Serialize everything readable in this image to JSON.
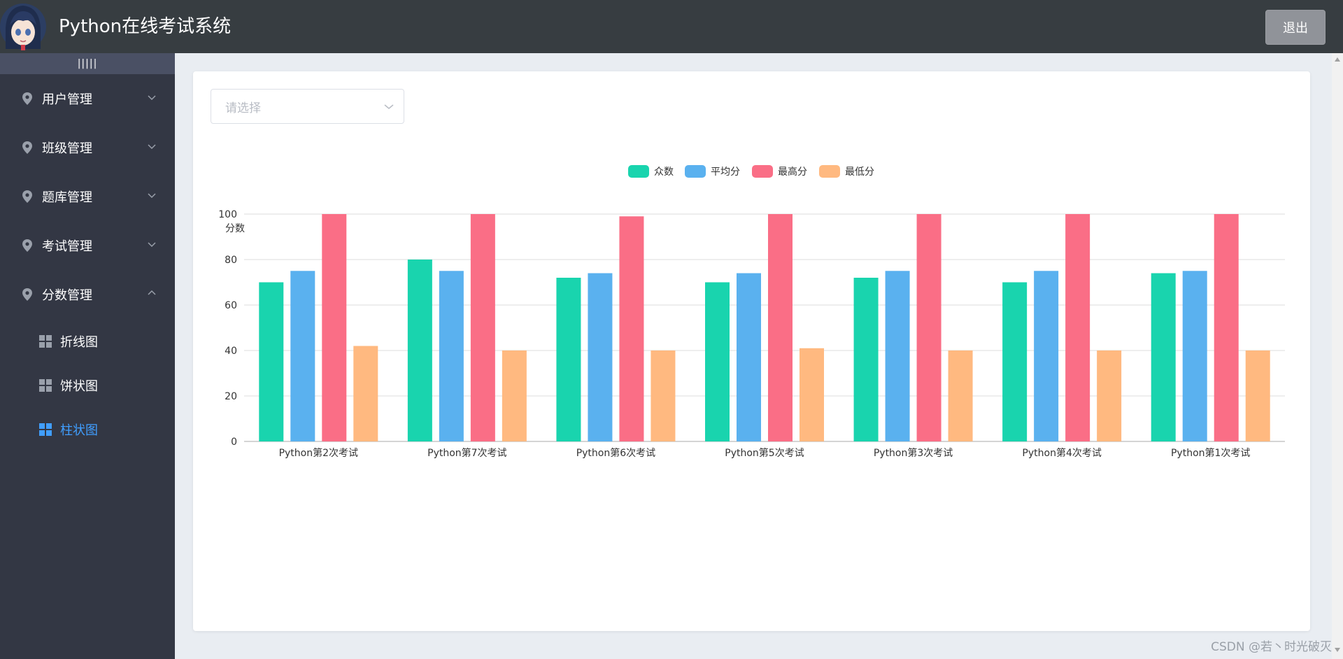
{
  "header": {
    "title": "Python在线考试系统",
    "logout_label": "退出"
  },
  "sidebar": {
    "collapse_label": "|||||",
    "menus": [
      {
        "label": "用户管理",
        "expanded": false
      },
      {
        "label": "班级管理",
        "expanded": false
      },
      {
        "label": "题库管理",
        "expanded": false
      },
      {
        "label": "考试管理",
        "expanded": false
      },
      {
        "label": "分数管理",
        "expanded": true
      }
    ],
    "sub_items": [
      {
        "label": "折线图",
        "active": false
      },
      {
        "label": "饼状图",
        "active": false
      },
      {
        "label": "柱状图",
        "active": true
      }
    ]
  },
  "main": {
    "select_placeholder": "请选择"
  },
  "chart_data": {
    "type": "bar",
    "ylabel": "分数",
    "ylim": [
      0,
      100
    ],
    "yticks": [
      0,
      20,
      40,
      60,
      80,
      100
    ],
    "grid": true,
    "legend_position": "top-center",
    "categories": [
      "Python第2次考试",
      "Python第7次考试",
      "Python第6次考试",
      "Python第5次考试",
      "Python第3次考试",
      "Python第4次考试",
      "Python第1次考试"
    ],
    "series": [
      {
        "name": "众数",
        "color": "#19d4ae",
        "values": [
          70,
          80,
          72,
          70,
          72,
          70,
          74
        ]
      },
      {
        "name": "平均分",
        "color": "#5ab1ef",
        "values": [
          75,
          75,
          74,
          74,
          75,
          75,
          75
        ]
      },
      {
        "name": "最高分",
        "color": "#fa6e86",
        "values": [
          100,
          100,
          99,
          100,
          100,
          100,
          100
        ]
      },
      {
        "name": "最低分",
        "color": "#ffb980",
        "values": [
          42,
          40,
          40,
          41,
          40,
          40,
          40
        ]
      }
    ]
  },
  "watermark": "CSDN @若丶时光破灭"
}
